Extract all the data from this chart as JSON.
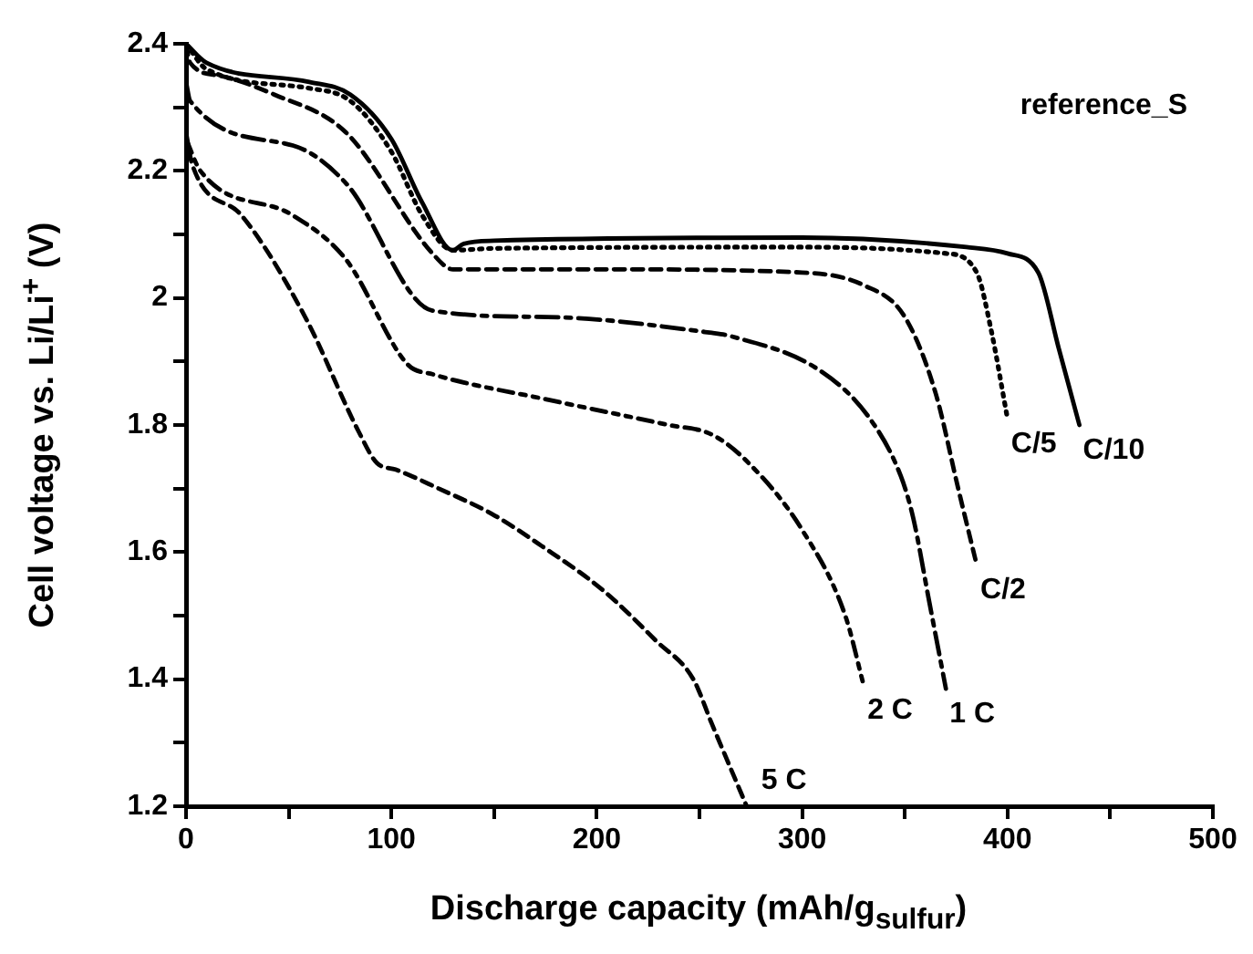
{
  "chart_data": {
    "type": "line",
    "xlabel": "Discharge capacity (mAh/g$_{sulfur}$)",
    "ylabel": "Cell voltage vs. Li/Li$^{+}$ (V)",
    "annotations": [
      "reference_S"
    ],
    "xlim": [
      0,
      500
    ],
    "xticks": [
      0,
      {
        "value": 50,
        "label": null
      },
      100,
      {
        "value": 150,
        "label": null
      },
      200,
      {
        "value": 250,
        "label": null
      },
      300,
      {
        "value": 350,
        "label": null
      },
      400,
      {
        "value": 450,
        "label": null
      },
      500
    ],
    "ylim": [
      1.2,
      2.4
    ],
    "yticks": [
      1.2,
      {
        "value": 1.3,
        "label": null
      },
      1.4,
      {
        "value": 1.5,
        "label": null
      },
      1.6,
      {
        "value": 1.7,
        "label": null
      },
      1.8,
      {
        "value": 1.9,
        "label": null
      },
      2.0,
      {
        "value": 2.1,
        "label": null
      },
      2.2,
      {
        "value": 2.3,
        "label": null
      },
      2.4
    ],
    "grid": false,
    "legend": false,
    "marker": "none",
    "series": [
      {
        "name": "C/10",
        "color": "#000000",
        "line_style": "solid",
        "x": [
          0,
          10,
          60,
          80,
          100,
          115,
          130,
          135,
          150,
          300,
          380,
          400,
          415,
          425,
          435
        ],
        "values": [
          2.4,
          2.37,
          2.34,
          2.32,
          2.25,
          2.15,
          2.075,
          2.085,
          2.09,
          2.095,
          2.08,
          2.07,
          2.04,
          1.92,
          1.8
        ]
      },
      {
        "name": "C/5",
        "color": "#000000",
        "line_style": "dotted",
        "x": [
          0,
          10,
          60,
          80,
          100,
          115,
          130,
          150,
          300,
          370,
          385,
          392,
          400
        ],
        "values": [
          2.4,
          2.36,
          2.33,
          2.31,
          2.23,
          2.13,
          2.075,
          2.078,
          2.08,
          2.07,
          2.04,
          1.95,
          1.81
        ]
      },
      {
        "name": "C/2",
        "color": "#000000",
        "line_style": "dashed",
        "x": [
          0,
          2,
          16,
          43,
          78,
          120,
          130,
          200,
          300,
          330,
          350,
          365,
          376,
          385
        ],
        "values": [
          2.4,
          2.37,
          2.35,
          2.32,
          2.26,
          2.07,
          2.045,
          2.045,
          2.04,
          2.02,
          1.97,
          1.85,
          1.7,
          1.58
        ]
      },
      {
        "name": "1 C",
        "color": "#000000",
        "line_style": "dashdot",
        "x": [
          0,
          2,
          52,
          78,
          120,
          176,
          256,
          265,
          309,
          333,
          348,
          354,
          362,
          370
        ],
        "values": [
          2.34,
          2.31,
          2.24,
          2.18,
          1.98,
          1.97,
          1.945,
          1.94,
          1.885,
          1.81,
          1.72,
          1.655,
          1.52,
          1.385
        ]
      },
      {
        "name": "2 C",
        "color": "#000000",
        "line_style": "dashdotdot",
        "x": [
          0,
          7,
          52,
          78,
          108,
          120,
          176,
          235,
          256,
          274,
          300,
          321,
          330
        ],
        "values": [
          2.25,
          2.2,
          2.13,
          2.06,
          1.895,
          1.88,
          1.84,
          1.8,
          1.785,
          1.74,
          1.635,
          1.5,
          1.39
        ]
      },
      {
        "name": "5 C",
        "color": "#000000",
        "line_style": "dashed",
        "x": [
          0,
          3,
          27,
          58,
          84,
          93,
          102,
          123,
          149,
          173,
          203,
          229,
          247,
          256,
          273
        ],
        "values": [
          2.26,
          2.21,
          2.13,
          1.97,
          1.79,
          1.74,
          1.73,
          1.7,
          1.66,
          1.61,
          1.54,
          1.46,
          1.4,
          1.33,
          1.2
        ]
      }
    ]
  }
}
